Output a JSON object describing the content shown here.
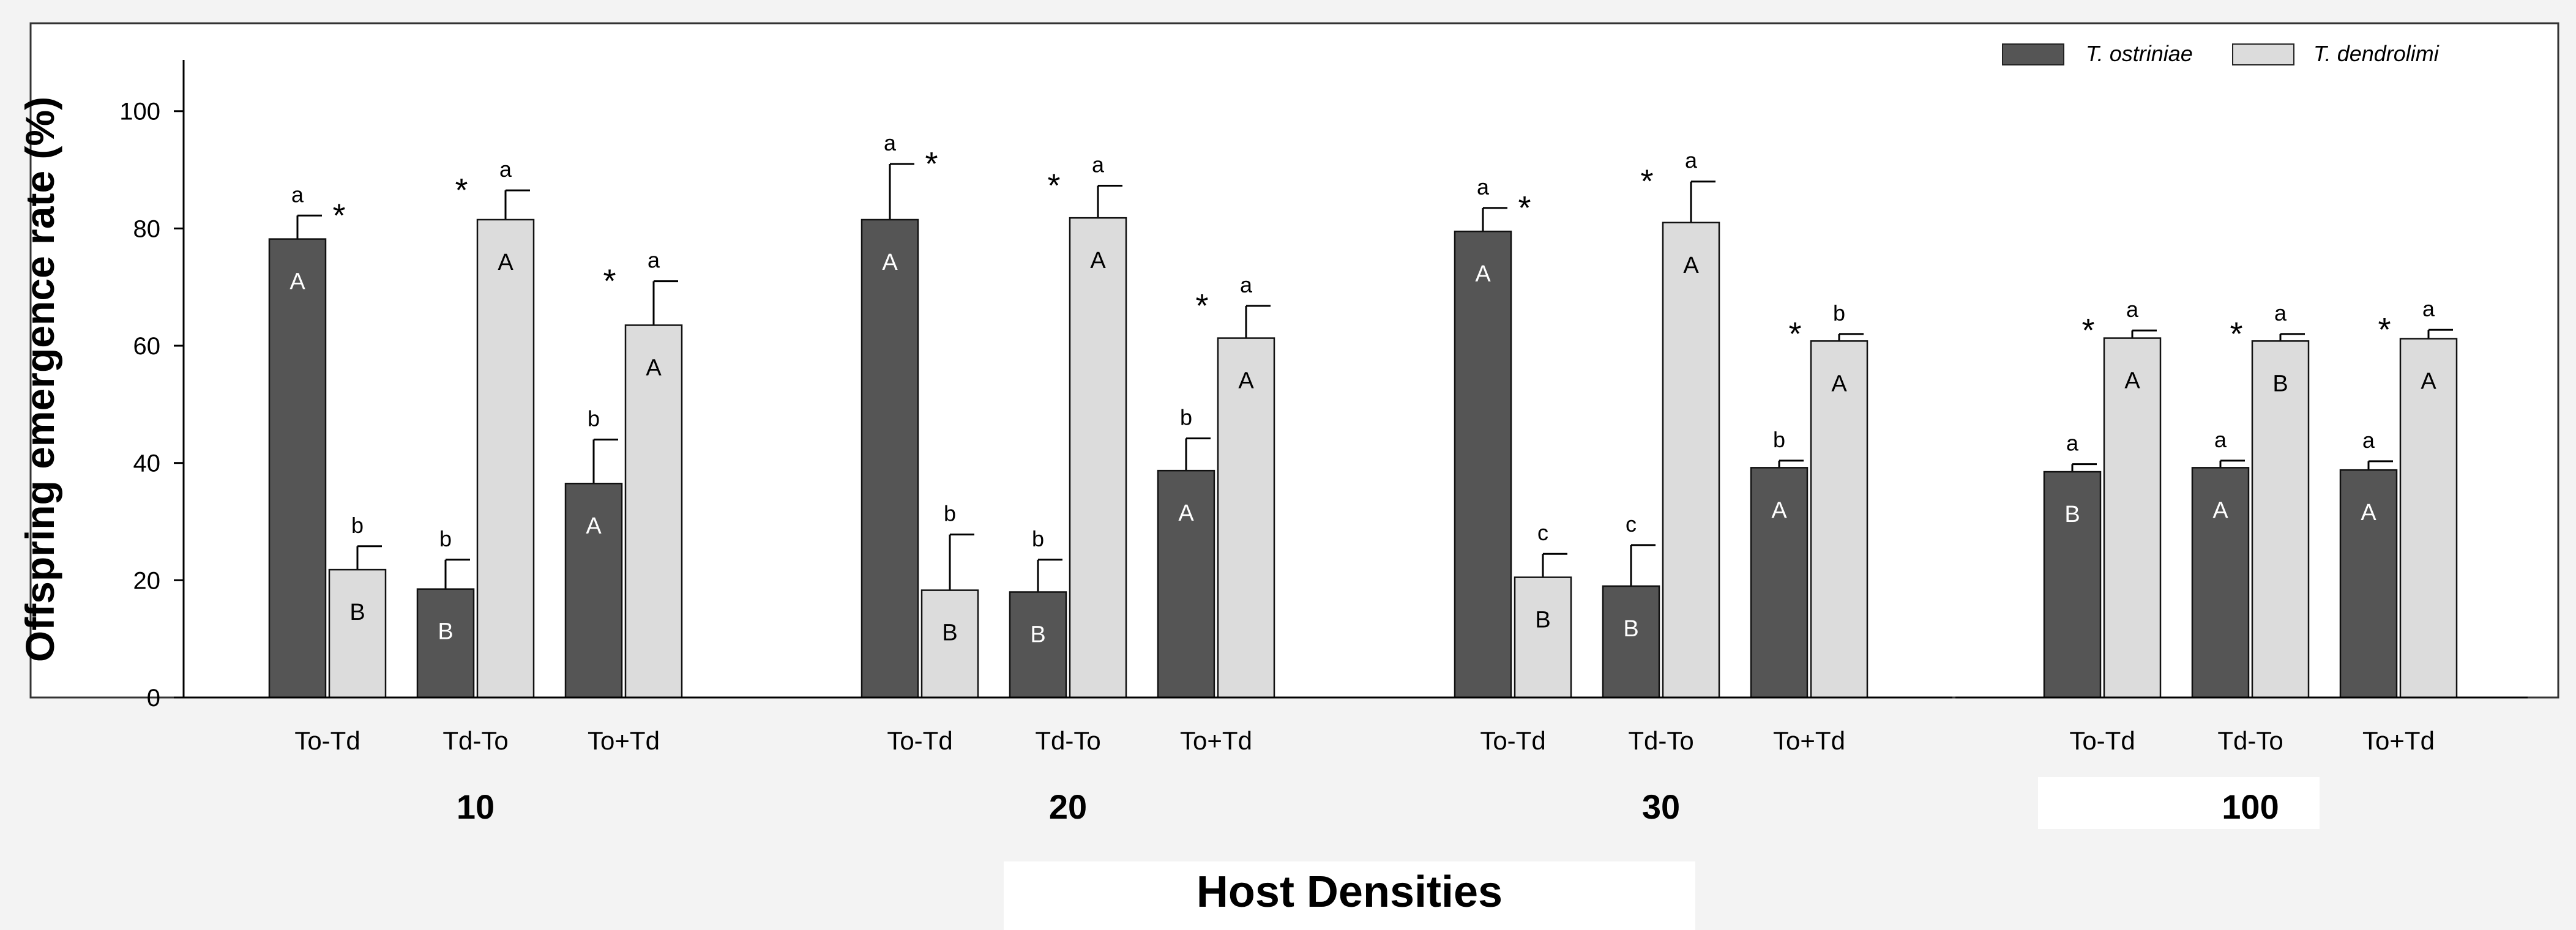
{
  "chart_data": {
    "type": "bar",
    "ylabel": "Offspring emergence rate (%)",
    "xlabel": "Host Densities",
    "ylim": [
      0,
      115
    ],
    "yticks": [
      0,
      20,
      40,
      60,
      80,
      100
    ],
    "legend": {
      "placement": "top-right",
      "entries": [
        {
          "name": "T. ostriniae",
          "color": "#555555"
        },
        {
          "name": "T. dendrolimi",
          "color": "#dcdcdc"
        }
      ]
    },
    "groups": [
      {
        "density": "10",
        "treatments": [
          {
            "label": "To-Td",
            "to": {
              "value": 78.2,
              "err": 4.0,
              "upper": "a",
              "inner": "A",
              "star": true
            },
            "td": {
              "value": 21.8,
              "err": 4.0,
              "upper": "b",
              "inner": "B",
              "star": false
            }
          },
          {
            "label": "Td-To",
            "to": {
              "value": 18.5,
              "err": 5.0,
              "upper": "b",
              "inner": "B",
              "star": false
            },
            "td": {
              "value": 81.5,
              "err": 5.0,
              "upper": "a",
              "inner": "A",
              "star": true
            }
          },
          {
            "label": "To+Td",
            "to": {
              "value": 36.5,
              "err": 7.5,
              "upper": "b",
              "inner": "A",
              "star": false
            },
            "td": {
              "value": 63.5,
              "err": 7.5,
              "upper": "a",
              "inner": "A",
              "star": true
            }
          }
        ]
      },
      {
        "density": "20",
        "treatments": [
          {
            "label": "To-Td",
            "to": {
              "value": 81.5,
              "err": 9.5,
              "upper": "a",
              "inner": "A",
              "star": true
            },
            "td": {
              "value": 18.3,
              "err": 9.5,
              "upper": "b",
              "inner": "B",
              "star": false
            }
          },
          {
            "label": "Td-To",
            "to": {
              "value": 18.0,
              "err": 5.5,
              "upper": "b",
              "inner": "B",
              "star": false
            },
            "td": {
              "value": 81.8,
              "err": 5.5,
              "upper": "a",
              "inner": "A",
              "star": true
            }
          },
          {
            "label": "To+Td",
            "to": {
              "value": 38.7,
              "err": 5.5,
              "upper": "b",
              "inner": "A",
              "star": false
            },
            "td": {
              "value": 61.3,
              "err": 5.5,
              "upper": "a",
              "inner": "A",
              "star": true
            }
          }
        ]
      },
      {
        "density": "30",
        "treatments": [
          {
            "label": "To-Td",
            "to": {
              "value": 79.5,
              "err": 4.0,
              "upper": "a",
              "inner": "A",
              "star": true
            },
            "td": {
              "value": 20.5,
              "err": 4.0,
              "upper": "c",
              "inner": "B",
              "star": false
            }
          },
          {
            "label": "Td-To",
            "to": {
              "value": 19.0,
              "err": 7.0,
              "upper": "c",
              "inner": "B",
              "star": false
            },
            "td": {
              "value": 81.0,
              "err": 7.0,
              "upper": "a",
              "inner": "A",
              "star": true
            }
          },
          {
            "label": "To+Td",
            "to": {
              "value": 39.2,
              "err": 1.2,
              "upper": "b",
              "inner": "A",
              "star": false
            },
            "td": {
              "value": 60.8,
              "err": 1.2,
              "upper": "b",
              "inner": "A",
              "star": true
            }
          }
        ]
      },
      {
        "density": "100",
        "treatments": [
          {
            "label": "To-Td",
            "to": {
              "value": 38.5,
              "err": 1.3,
              "upper": "a",
              "inner": "B",
              "star": false
            },
            "td": {
              "value": 61.3,
              "err": 1.3,
              "upper": "a",
              "inner": "A",
              "star": true
            }
          },
          {
            "label": "Td-To",
            "to": {
              "value": 39.2,
              "err": 1.2,
              "upper": "a",
              "inner": "A",
              "star": false
            },
            "td": {
              "value": 60.8,
              "err": 1.2,
              "upper": "a",
              "inner": "B",
              "star": true
            }
          },
          {
            "label": "To+Td",
            "to": {
              "value": 38.8,
              "err": 1.5,
              "upper": "a",
              "inner": "A",
              "star": false
            },
            "td": {
              "value": 61.2,
              "err": 1.5,
              "upper": "a",
              "inner": "A",
              "star": true
            }
          }
        ]
      }
    ]
  }
}
